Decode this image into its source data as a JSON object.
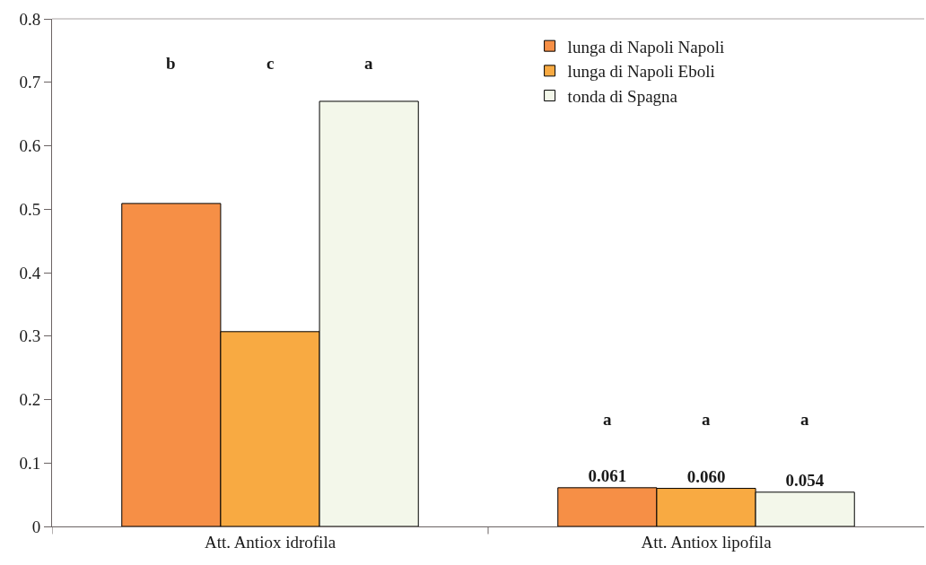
{
  "chart_data": {
    "type": "bar",
    "categories": [
      "Att. Antiox idrofila",
      "Att. Antiox lipofila"
    ],
    "series": [
      {
        "name": "lunga di Napoli Napoli",
        "color": "#f68f46",
        "values": [
          0.509,
          0.061
        ],
        "value_labels": [
          null,
          "0.061"
        ]
      },
      {
        "name": "lunga di Napoli Eboli",
        "color": "#f8aa42",
        "values": [
          0.307,
          0.06
        ],
        "value_labels": [
          null,
          "0.060"
        ]
      },
      {
        "name": "tonda di Spagna",
        "color": "#f3f7ea",
        "values": [
          0.67,
          0.054
        ],
        "value_labels": [
          null,
          "0.054"
        ]
      }
    ],
    "annotations": [
      "b",
      "c",
      "a",
      "a",
      "a",
      "a"
    ],
    "ylim": [
      0,
      0.8
    ],
    "yticks": [
      0,
      0.1,
      0.2,
      0.3,
      0.4,
      0.5,
      0.6,
      0.7,
      0.8
    ],
    "legend": "top right"
  }
}
